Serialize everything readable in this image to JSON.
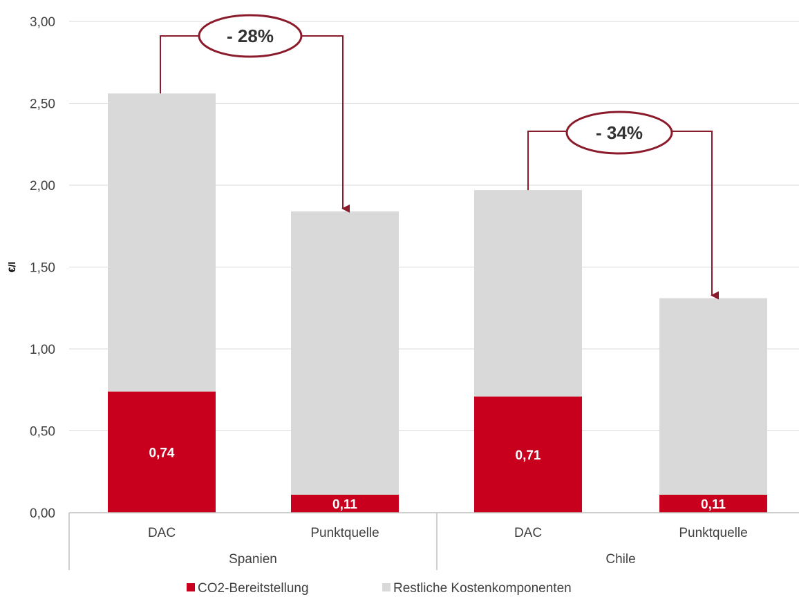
{
  "chart_data": {
    "type": "bar",
    "stacked": true,
    "ylabel": "€/l",
    "ylim": [
      0,
      3
    ],
    "yticks": [
      "0,00",
      "0,50",
      "1,00",
      "1,50",
      "2,00",
      "2,50",
      "3,00"
    ],
    "groups": [
      {
        "name": "Spanien",
        "categories": [
          "DAC",
          "Punktquelle"
        ]
      },
      {
        "name": "Chile",
        "categories": [
          "DAC",
          "Punktquelle"
        ]
      }
    ],
    "categories": [
      "DAC",
      "Punktquelle",
      "DAC",
      "Punktquelle"
    ],
    "series": [
      {
        "name": "CO2-Bereitstellung",
        "color": "#c8001e",
        "values": [
          0.74,
          0.11,
          0.71,
          0.11
        ],
        "labels": [
          "0,74",
          "0,11",
          "0,71",
          "0,11"
        ]
      },
      {
        "name": "Restliche Kostenkomponenten",
        "color": "#d9d9d9",
        "values": [
          1.82,
          1.73,
          1.26,
          1.2
        ]
      }
    ],
    "annotations": [
      {
        "text": "- 28%",
        "from_bar": 0,
        "to_bar": 1
      },
      {
        "text": "- 34%",
        "from_bar": 2,
        "to_bar": 3
      }
    ],
    "legend_position": "bottom",
    "grid": true
  },
  "colors": {
    "accent": "#8b1a2b",
    "grid": "#d9d9d9",
    "axis": "#bfbfbf"
  }
}
